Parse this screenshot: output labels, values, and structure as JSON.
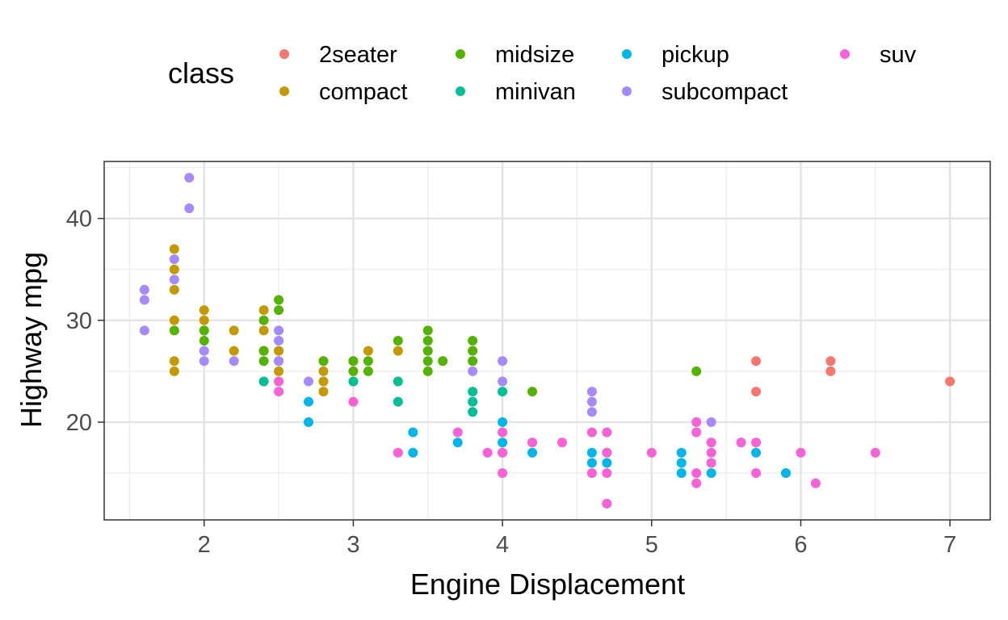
{
  "chart_data": {
    "type": "scatter",
    "title": "",
    "xlabel": "Engine Displacement",
    "ylabel": "Highway mpg",
    "xlim": [
      1.33,
      7.27
    ],
    "ylim": [
      10.4,
      45.6
    ],
    "x_ticks": [
      2,
      3,
      4,
      5,
      6,
      7
    ],
    "x_tick_labels": [
      "2",
      "3",
      "4",
      "5",
      "6",
      "7"
    ],
    "y_ticks": [
      20,
      30,
      40
    ],
    "y_tick_labels": [
      "20",
      "30",
      "40"
    ],
    "grid": true,
    "legend": {
      "title": "class",
      "position": "top"
    },
    "series": [
      {
        "name": "2seater",
        "color": "#F8766D",
        "points": [
          [
            5.7,
            26
          ],
          [
            5.7,
            23
          ],
          [
            6.2,
            26
          ],
          [
            6.2,
            25
          ],
          [
            7.0,
            24
          ]
        ]
      },
      {
        "name": "compact",
        "color": "#C49A00",
        "points": [
          [
            1.8,
            37
          ],
          [
            1.8,
            35
          ],
          [
            1.8,
            33
          ],
          [
            1.8,
            30
          ],
          [
            1.8,
            26
          ],
          [
            1.8,
            25
          ],
          [
            2.0,
            31
          ],
          [
            2.0,
            30
          ],
          [
            2.0,
            29
          ],
          [
            2.2,
            29
          ],
          [
            2.2,
            27
          ],
          [
            2.4,
            31
          ],
          [
            2.4,
            29
          ],
          [
            2.4,
            27
          ],
          [
            2.5,
            27
          ],
          [
            2.5,
            26
          ],
          [
            2.5,
            25
          ],
          [
            2.8,
            26
          ],
          [
            2.8,
            25
          ],
          [
            2.8,
            24
          ],
          [
            2.8,
            23
          ],
          [
            3.0,
            26
          ],
          [
            3.1,
            27
          ],
          [
            3.3,
            27
          ]
        ]
      },
      {
        "name": "midsize",
        "color": "#53B400",
        "points": [
          [
            1.8,
            29
          ],
          [
            2.0,
            29
          ],
          [
            2.0,
            28
          ],
          [
            2.4,
            30
          ],
          [
            2.4,
            27
          ],
          [
            2.4,
            26
          ],
          [
            2.5,
            32
          ],
          [
            2.5,
            31
          ],
          [
            2.8,
            26
          ],
          [
            3.0,
            26
          ],
          [
            3.0,
            25
          ],
          [
            3.1,
            26
          ],
          [
            3.1,
            25
          ],
          [
            3.3,
            28
          ],
          [
            3.5,
            29
          ],
          [
            3.5,
            28
          ],
          [
            3.5,
            27
          ],
          [
            3.5,
            26
          ],
          [
            3.5,
            25
          ],
          [
            3.6,
            26
          ],
          [
            3.8,
            28
          ],
          [
            3.8,
            27
          ],
          [
            3.8,
            26
          ],
          [
            4.2,
            23
          ],
          [
            5.3,
            25
          ]
        ]
      },
      {
        "name": "minivan",
        "color": "#00C094",
        "points": [
          [
            2.4,
            24
          ],
          [
            3.0,
            24
          ],
          [
            3.3,
            24
          ],
          [
            3.3,
            22
          ],
          [
            3.8,
            23
          ],
          [
            3.8,
            22
          ],
          [
            3.8,
            21
          ],
          [
            4.0,
            23
          ]
        ]
      },
      {
        "name": "pickup",
        "color": "#00B6EB",
        "points": [
          [
            2.7,
            22
          ],
          [
            2.7,
            20
          ],
          [
            3.4,
            19
          ],
          [
            3.4,
            17
          ],
          [
            3.7,
            18
          ],
          [
            4.0,
            20
          ],
          [
            4.0,
            18
          ],
          [
            4.0,
            17
          ],
          [
            4.2,
            17
          ],
          [
            4.6,
            17
          ],
          [
            4.6,
            16
          ],
          [
            4.7,
            17
          ],
          [
            4.7,
            16
          ],
          [
            4.7,
            12
          ],
          [
            5.2,
            17
          ],
          [
            5.2,
            16
          ],
          [
            5.2,
            15
          ],
          [
            5.4,
            15
          ],
          [
            5.7,
            17
          ],
          [
            5.9,
            15
          ]
        ]
      },
      {
        "name": "subcompact",
        "color": "#A58AFF",
        "points": [
          [
            1.6,
            33
          ],
          [
            1.6,
            32
          ],
          [
            1.6,
            29
          ],
          [
            1.8,
            36
          ],
          [
            1.8,
            34
          ],
          [
            1.9,
            44
          ],
          [
            1.9,
            41
          ],
          [
            2.0,
            27
          ],
          [
            2.0,
            26
          ],
          [
            2.2,
            26
          ],
          [
            2.5,
            29
          ],
          [
            2.5,
            28
          ],
          [
            2.5,
            26
          ],
          [
            2.7,
            24
          ],
          [
            3.8,
            25
          ],
          [
            4.0,
            26
          ],
          [
            4.0,
            24
          ],
          [
            4.6,
            23
          ],
          [
            4.6,
            22
          ],
          [
            4.6,
            21
          ],
          [
            5.4,
            20
          ]
        ]
      },
      {
        "name": "suv",
        "color": "#FB61D7",
        "points": [
          [
            2.5,
            24
          ],
          [
            2.5,
            23
          ],
          [
            3.0,
            22
          ],
          [
            3.3,
            17
          ],
          [
            3.7,
            19
          ],
          [
            3.9,
            17
          ],
          [
            4.0,
            19
          ],
          [
            4.0,
            17
          ],
          [
            4.0,
            15
          ],
          [
            4.2,
            18
          ],
          [
            4.4,
            18
          ],
          [
            4.6,
            19
          ],
          [
            4.6,
            15
          ],
          [
            4.7,
            19
          ],
          [
            4.7,
            17
          ],
          [
            4.7,
            15
          ],
          [
            4.7,
            12
          ],
          [
            5.0,
            17
          ],
          [
            5.3,
            20
          ],
          [
            5.3,
            19
          ],
          [
            5.3,
            15
          ],
          [
            5.3,
            14
          ],
          [
            5.4,
            18
          ],
          [
            5.4,
            17
          ],
          [
            5.4,
            16
          ],
          [
            5.6,
            18
          ],
          [
            5.7,
            18
          ],
          [
            5.7,
            15
          ],
          [
            6.0,
            17
          ],
          [
            6.1,
            14
          ],
          [
            6.5,
            17
          ]
        ]
      }
    ]
  }
}
